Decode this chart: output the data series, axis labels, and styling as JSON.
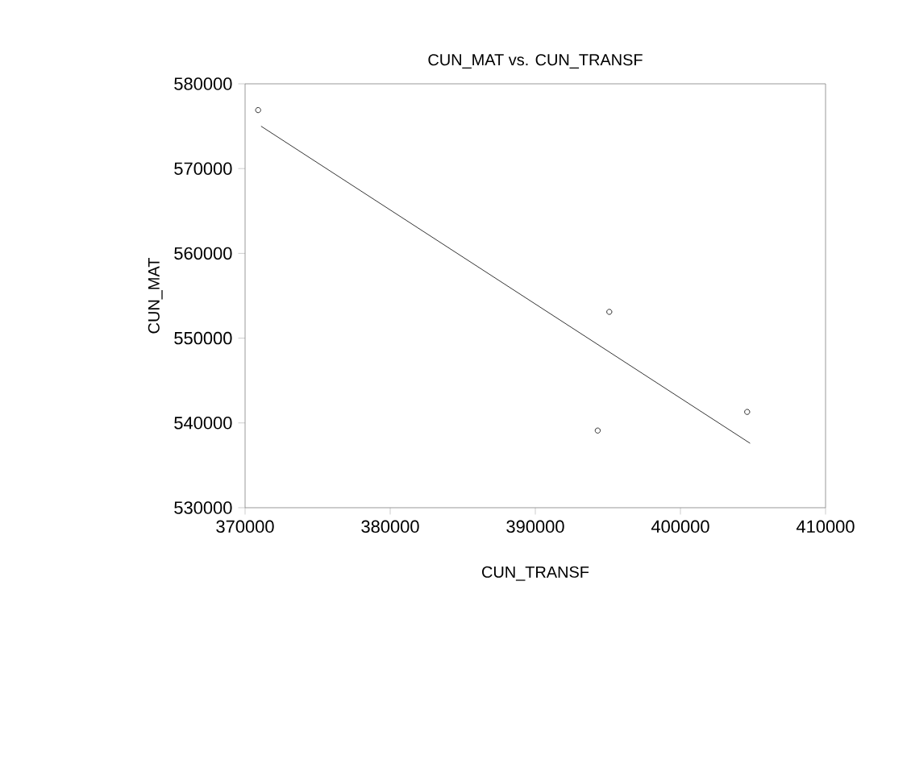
{
  "chart_data": {
    "type": "scatter",
    "title": "CUN_MAT vs. CUN_TRANSF",
    "xlabel": "CUN_TRANSF",
    "ylabel": "CUN_MAT",
    "series": [
      {
        "color": "#000000",
        "marker": "circle",
        "x": [
          370900,
          395100,
          394300,
          404600
        ],
        "values": [
          576900,
          553100,
          539100,
          541300
        ]
      },
      {
        "type": "line",
        "color": "#000000",
        "line_style": "solid",
        "x": [
          371100,
          404800
        ],
        "values": [
          575000,
          537600
        ]
      }
    ],
    "xlim": [
      370000,
      410000
    ],
    "ylim": [
      530000,
      580000
    ],
    "xticks": [
      370000,
      380000,
      390000,
      400000,
      410000
    ],
    "yticks": [
      530000,
      540000,
      550000,
      560000,
      570000,
      580000
    ],
    "grid": false
  }
}
